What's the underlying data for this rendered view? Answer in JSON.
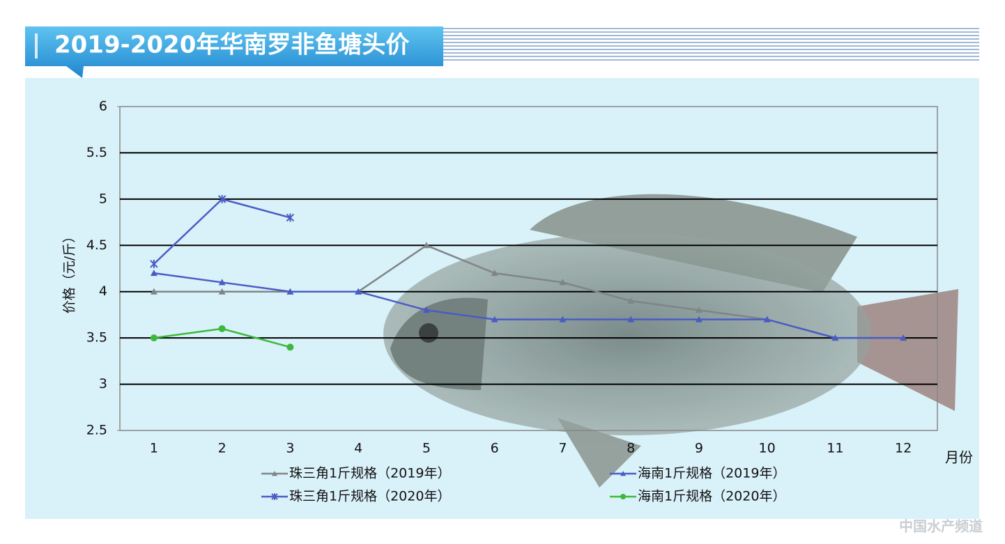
{
  "chart_data": {
    "type": "line",
    "title": "2019-2020年华南罗非鱼塘头价",
    "y_label": "价格（元/斤）",
    "x_label": "月份",
    "watermark": "中国水产频道",
    "categories": [
      "1",
      "2",
      "3",
      "4",
      "5",
      "6",
      "7",
      "8",
      "9",
      "10",
      "11",
      "12"
    ],
    "series": [
      {
        "name": "珠三角1斤规格（2019年）",
        "color": "#7f8587",
        "marker": "triangle",
        "values": [
          4,
          4,
          4,
          4,
          4.5,
          4.2,
          4.1,
          3.9,
          3.8,
          3.7,
          3.5,
          3.5
        ]
      },
      {
        "name": "海南1斤规格（2019年）",
        "color": "#4a5cc4",
        "marker": "triangle",
        "values": [
          4.2,
          4.1,
          4.0,
          4.0,
          3.8,
          3.7,
          3.7,
          3.7,
          3.7,
          3.7,
          3.5,
          3.5
        ]
      },
      {
        "name": "珠三角1斤规格（2020年）",
        "color": "#4a5cc4",
        "marker": "star",
        "values": [
          4.3,
          5.0,
          4.8,
          null,
          null,
          null,
          null,
          null,
          null,
          null,
          null,
          null
        ]
      },
      {
        "name": "海南1斤规格（2020年）",
        "color": "#3cb93c",
        "marker": "circle",
        "values": [
          3.5,
          3.6,
          3.4,
          null,
          null,
          null,
          null,
          null,
          null,
          null,
          null,
          null
        ]
      }
    ],
    "ylim": [
      2.5,
      6
    ],
    "yticks": [
      2.5,
      3,
      3.5,
      4,
      4.5,
      5,
      5.5,
      6
    ],
    "grid": true
  }
}
